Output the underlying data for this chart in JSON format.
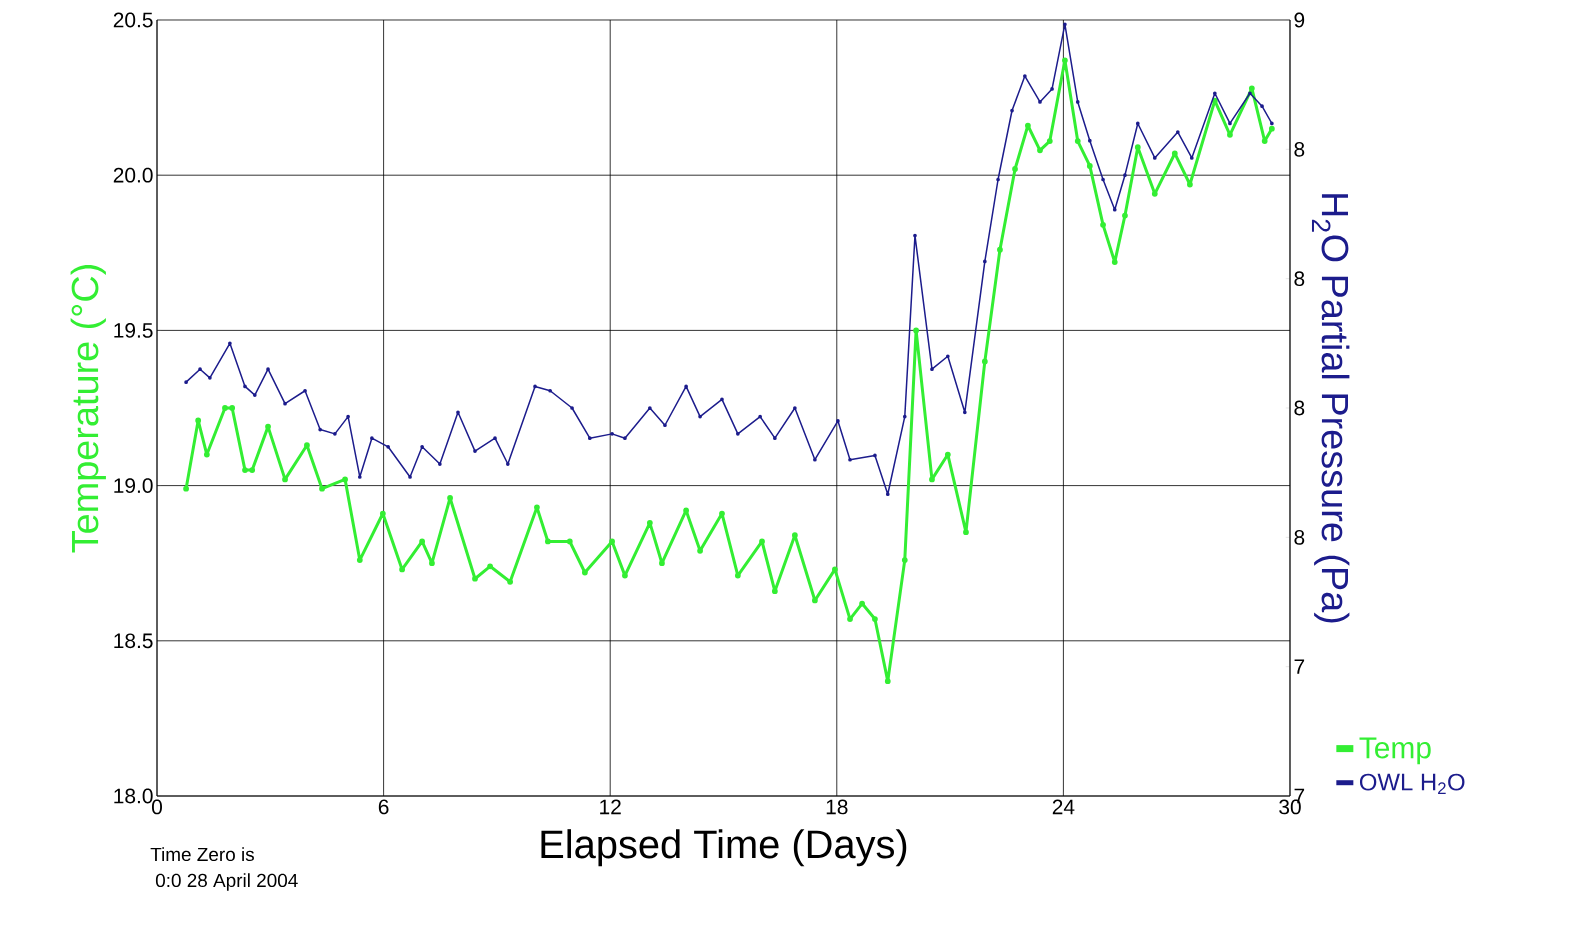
{
  "chart_data": {
    "type": "line",
    "xlabel": "Elapsed Time (Days)",
    "ylabel": "Temperature (°C)",
    "y2label": "H$_{2}$O Partial Pressure (Pa)",
    "annotations": [
      "Time Zero is",
      "0:0  28 April 2004"
    ],
    "xlim": [
      0,
      30
    ],
    "xticks": [
      0,
      6,
      12,
      18,
      24,
      30
    ],
    "ylim": [
      18.0,
      20.5
    ],
    "yticks": [
      {
        "value": 18.0,
        "label": "18.0"
      },
      {
        "value": 18.5,
        "label": "18.5"
      },
      {
        "value": 19.0,
        "label": "19.0"
      },
      {
        "value": 19.5,
        "label": "19.5"
      },
      {
        "value": 20.0,
        "label": "20.0"
      },
      {
        "value": 20.5,
        "label": "20.5"
      }
    ],
    "y2lim": [
      7.0,
      8.8
    ],
    "y2ticks": [
      {
        "value": 7.0,
        "label": "7"
      },
      {
        "value": 7.3,
        "label": "7"
      },
      {
        "value": 7.6,
        "label": "8"
      },
      {
        "value": 7.9,
        "label": "8"
      },
      {
        "value": 8.2,
        "label": "8"
      },
      {
        "value": 8.5,
        "label": "8"
      },
      {
        "value": 8.8,
        "label": "9"
      }
    ],
    "grid": true,
    "legend": "bottom right",
    "marker": "circle",
    "line_style": "solid",
    "series": [
      {
        "name": "Temp",
        "color": "#33ee33",
        "x": [
          0.77,
          1.09,
          1.32,
          1.8,
          1.99,
          2.33,
          2.52,
          2.94,
          3.39,
          3.97,
          4.37,
          4.98,
          5.37,
          5.98,
          6.49,
          7.02,
          7.28,
          7.76,
          8.42,
          8.82,
          9.35,
          10.06,
          10.35,
          10.93,
          11.33,
          12.05,
          12.39,
          13.05,
          13.37,
          14.01,
          14.38,
          14.96,
          15.38,
          16.02,
          16.36,
          16.89,
          17.42,
          17.95,
          18.35,
          18.67,
          19.01,
          19.35,
          19.8,
          20.1,
          20.52,
          20.94,
          21.42,
          21.92,
          22.32,
          22.72,
          23.06,
          23.38,
          23.64,
          24.04,
          24.38,
          24.7,
          25.05,
          25.36,
          25.63,
          25.97,
          26.42,
          26.95,
          27.35,
          28.01,
          28.41,
          28.99,
          29.33,
          29.52
        ],
        "values": [
          18.99,
          19.21,
          19.1,
          19.25,
          19.25,
          19.05,
          19.05,
          19.19,
          19.02,
          19.13,
          18.99,
          19.02,
          18.76,
          18.91,
          18.73,
          18.82,
          18.75,
          18.96,
          18.7,
          18.74,
          18.69,
          18.93,
          18.82,
          18.82,
          18.72,
          18.82,
          18.71,
          18.88,
          18.75,
          18.92,
          18.79,
          18.91,
          18.71,
          18.82,
          18.66,
          18.84,
          18.63,
          18.73,
          18.57,
          18.62,
          18.57,
          18.37,
          18.76,
          19.5,
          19.02,
          19.1,
          18.85,
          19.4,
          19.76,
          20.02,
          20.16,
          20.08,
          20.11,
          20.37,
          20.11,
          20.03,
          19.84,
          19.72,
          19.87,
          20.09,
          19.94,
          20.07,
          19.97,
          20.24,
          20.13,
          20.28,
          20.11,
          20.15
        ]
      },
      {
        "name": "OWL H$_{2}$O",
        "color": "#1c1c8c",
        "axis": "y2",
        "x": [
          0.77,
          1.14,
          1.4,
          1.93,
          2.33,
          2.59,
          2.94,
          3.39,
          3.92,
          4.32,
          4.71,
          5.06,
          5.37,
          5.69,
          6.12,
          6.7,
          7.02,
          7.49,
          7.97,
          8.42,
          8.95,
          9.29,
          10.01,
          10.41,
          10.99,
          11.46,
          12.05,
          12.39,
          13.05,
          13.45,
          14.01,
          14.38,
          14.96,
          15.38,
          15.97,
          16.36,
          16.89,
          17.42,
          18.03,
          18.35,
          19.01,
          19.35,
          19.8,
          20.07,
          20.52,
          20.94,
          21.39,
          21.92,
          22.27,
          22.64,
          22.98,
          23.38,
          23.7,
          24.04,
          24.38,
          24.7,
          25.05,
          25.36,
          25.63,
          25.97,
          26.42,
          27.03,
          27.4,
          28.01,
          28.41,
          28.94,
          29.26,
          29.52
        ],
        "values": [
          7.96,
          7.99,
          7.97,
          8.05,
          7.95,
          7.93,
          7.99,
          7.91,
          7.94,
          7.85,
          7.84,
          7.88,
          7.74,
          7.83,
          7.81,
          7.74,
          7.81,
          7.77,
          7.89,
          7.8,
          7.83,
          7.77,
          7.95,
          7.94,
          7.9,
          7.83,
          7.84,
          7.83,
          7.9,
          7.86,
          7.95,
          7.88,
          7.92,
          7.84,
          7.88,
          7.83,
          7.9,
          7.78,
          7.87,
          7.78,
          7.79,
          7.7,
          7.88,
          8.3,
          7.99,
          8.02,
          7.89,
          8.24,
          8.43,
          8.59,
          8.67,
          8.61,
          8.64,
          8.79,
          8.61,
          8.52,
          8.43,
          8.36,
          8.44,
          8.56,
          8.48,
          8.54,
          8.48,
          8.63,
          8.56,
          8.63,
          8.6,
          8.56
        ]
      }
    ]
  }
}
